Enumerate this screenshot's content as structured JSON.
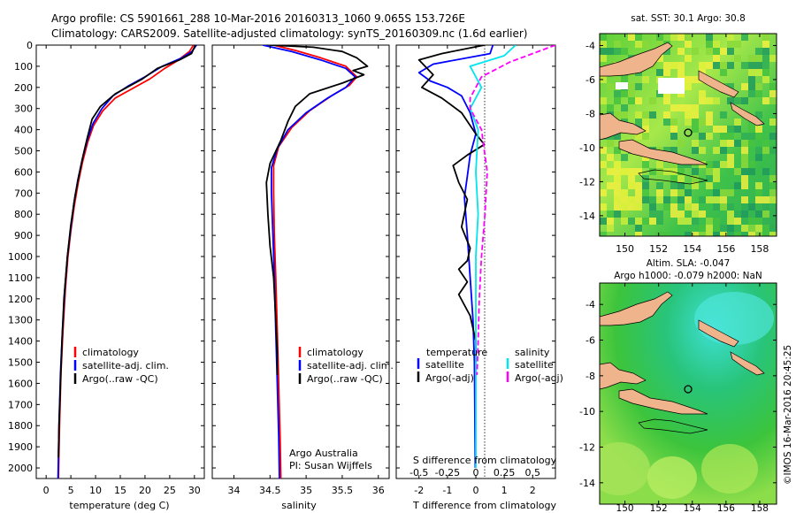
{
  "header": {
    "line1": "Argo profile: CS 5901661_288 10-Mar-2016 20160313_1060 9.065S 153.726E",
    "line2": "Climatology: CARS2009. Satellite-adjusted climatology: synTS_20160309.nc (1.6d earlier)"
  },
  "colors": {
    "clim": "#ff0000",
    "sat": "#0000ff",
    "argo": "#000000",
    "sat_s": "#00e5ee",
    "argo_s": "#ff00ff",
    "land": "#f0b48c"
  },
  "credits": {
    "org": "Argo Australia",
    "pi": "PI: Susan Wijffels",
    "imos": "©IMOS 16-Mar-2016 20:45:25"
  },
  "chart_data": [
    {
      "type": "line",
      "xlabel": "temperature (deg C)",
      "xlim": [
        -2,
        32
      ],
      "xticks": [
        0,
        5,
        10,
        15,
        20,
        25,
        30
      ],
      "ylim": [
        2050,
        0
      ],
      "yticks": [
        0,
        100,
        200,
        300,
        400,
        500,
        600,
        700,
        800,
        900,
        1000,
        1100,
        1200,
        1300,
        1400,
        1500,
        1600,
        1700,
        1800,
        1900,
        2000
      ],
      "legend": [
        "climatology",
        "satellite-adj. clim.",
        "Argo(..raw -QC)"
      ],
      "series": [
        {
          "name": "climatology",
          "color_key": "clim",
          "points": [
            [
              29.8,
              0
            ],
            [
              29,
              30
            ],
            [
              26.5,
              75
            ],
            [
              24,
              110
            ],
            [
              21,
              160
            ],
            [
              17.5,
              205
            ],
            [
              14,
              250
            ],
            [
              11.5,
              310
            ],
            [
              9.6,
              380
            ],
            [
              8.4,
              460
            ],
            [
              7.4,
              550
            ],
            [
              6.5,
              650
            ],
            [
              5.7,
              760
            ],
            [
              5,
              880
            ],
            [
              4.4,
              1000
            ],
            [
              3.9,
              1150
            ],
            [
              3.4,
              1350
            ],
            [
              3,
              1550
            ],
            [
              2.7,
              1800
            ],
            [
              2.5,
              2050
            ]
          ]
        },
        {
          "name": "satellite-adj. clim.",
          "color_key": "sat",
          "points": [
            [
              30.4,
              0
            ],
            [
              29.5,
              30
            ],
            [
              27.5,
              60
            ],
            [
              23.5,
              100
            ],
            [
              20,
              150
            ],
            [
              16.5,
              195
            ],
            [
              13.5,
              240
            ],
            [
              11.3,
              300
            ],
            [
              9.5,
              370
            ],
            [
              8.3,
              450
            ],
            [
              7.3,
              540
            ],
            [
              6.4,
              640
            ],
            [
              5.6,
              750
            ],
            [
              4.9,
              880
            ],
            [
              4.3,
              1000
            ],
            [
              3.8,
              1150
            ],
            [
              3.3,
              1350
            ],
            [
              2.9,
              1550
            ],
            [
              2.6,
              1800
            ],
            [
              2.4,
              2050
            ]
          ]
        },
        {
          "name": "Argo(..raw -QC)",
          "color_key": "argo",
          "points": [
            [
              30.2,
              0
            ],
            [
              29.4,
              40
            ],
            [
              27,
              70
            ],
            [
              22.5,
              110
            ],
            [
              19.5,
              160
            ],
            [
              14,
              230
            ],
            [
              11,
              290
            ],
            [
              9.3,
              350
            ],
            [
              8.3,
              440
            ],
            [
              7.5,
              520
            ],
            [
              6.6,
              620
            ],
            [
              5.8,
              720
            ],
            [
              5,
              850
            ],
            [
              4.3,
              1000
            ],
            [
              3.6,
              1200
            ],
            [
              3.2,
              1400
            ],
            [
              2.9,
              1600
            ],
            [
              2.6,
              1800
            ],
            [
              2.5,
              1950
            ]
          ]
        }
      ]
    },
    {
      "type": "line",
      "xlabel": "salinity",
      "xlim": [
        33.7,
        36.15
      ],
      "xticks": [
        34,
        34.5,
        35,
        35.5,
        36
      ],
      "ylim": [
        2050,
        0
      ],
      "legend": [
        "climatology",
        "satellite-adj. clim.",
        "Argo(..raw -QC)"
      ],
      "series": [
        {
          "name": "climatology",
          "color_key": "clim",
          "points": [
            [
              34.55,
              0
            ],
            [
              34.85,
              25
            ],
            [
              35.2,
              60
            ],
            [
              35.55,
              100
            ],
            [
              35.7,
              150
            ],
            [
              35.6,
              190
            ],
            [
              35.35,
              240
            ],
            [
              35.05,
              310
            ],
            [
              34.8,
              390
            ],
            [
              34.62,
              480
            ],
            [
              34.55,
              570
            ],
            [
              34.55,
              700
            ],
            [
              34.56,
              900
            ],
            [
              34.58,
              1100
            ],
            [
              34.6,
              1350
            ],
            [
              34.62,
              1600
            ],
            [
              34.64,
              1850
            ],
            [
              34.65,
              2050
            ]
          ]
        },
        {
          "name": "satellite-adj. clim.",
          "color_key": "sat",
          "points": [
            [
              34.4,
              0
            ],
            [
              34.8,
              30
            ],
            [
              35.2,
              70
            ],
            [
              35.55,
              110
            ],
            [
              35.68,
              150
            ],
            [
              35.55,
              200
            ],
            [
              35.3,
              250
            ],
            [
              35,
              320
            ],
            [
              34.75,
              400
            ],
            [
              34.6,
              490
            ],
            [
              34.52,
              580
            ],
            [
              34.52,
              700
            ],
            [
              34.54,
              900
            ],
            [
              34.56,
              1100
            ],
            [
              34.58,
              1350
            ],
            [
              34.6,
              1600
            ],
            [
              34.62,
              1850
            ],
            [
              34.63,
              2050
            ]
          ]
        },
        {
          "name": "Argo(..raw -QC)",
          "color_key": "argo",
          "points": [
            [
              34.5,
              0
            ],
            [
              35.1,
              10
            ],
            [
              35.5,
              30
            ],
            [
              35.7,
              60
            ],
            [
              35.85,
              100
            ],
            [
              35.65,
              120
            ],
            [
              35.8,
              140
            ],
            [
              35.5,
              180
            ],
            [
              35.05,
              230
            ],
            [
              34.85,
              290
            ],
            [
              34.75,
              360
            ],
            [
              34.65,
              450
            ],
            [
              34.5,
              560
            ],
            [
              34.45,
              650
            ],
            [
              34.47,
              800
            ],
            [
              34.5,
              950
            ],
            [
              34.55,
              1100
            ],
            [
              34.58,
              1300
            ],
            [
              34.6,
              1460
            ],
            [
              34.6,
              1560
            ]
          ]
        }
      ]
    },
    {
      "type": "line",
      "xlabel": "T difference from climatology",
      "sublabel": "S difference from climatology",
      "xlim": [
        -2.8,
        2.8
      ],
      "xticks": [
        -2,
        -1,
        0,
        1,
        2
      ],
      "xlim_s": [
        -0.7,
        0.7
      ],
      "xticks_s": [
        -0.5,
        -0.25,
        0,
        0.25,
        0.5
      ],
      "ylim": [
        2050,
        0
      ],
      "legend_groups": [
        {
          "title": "temperature",
          "items": [
            "satellite",
            "Argo(-adj)"
          ]
        },
        {
          "title": "salinity",
          "items": [
            "satellite",
            "Argo(-adj)"
          ]
        }
      ],
      "series": [
        {
          "name": "temperature satellite",
          "color_key": "sat",
          "points": [
            [
              0.6,
              0
            ],
            [
              0.5,
              40
            ],
            [
              -1.5,
              90
            ],
            [
              -2,
              130
            ],
            [
              -1.6,
              170
            ],
            [
              -1,
              200
            ],
            [
              -0.5,
              240
            ],
            [
              -0.2,
              320
            ],
            [
              0,
              420
            ],
            [
              -0.2,
              520
            ],
            [
              -0.3,
              620
            ],
            [
              -0.4,
              720
            ],
            [
              -0.3,
              900
            ],
            [
              -0.2,
              1100
            ],
            [
              -0.1,
              1300
            ],
            [
              -0.05,
              1500
            ],
            [
              -0.02,
              2000
            ]
          ]
        },
        {
          "name": "temperature Argo(-adj)",
          "color_key": "argo",
          "points": [
            [
              0.3,
              0
            ],
            [
              -1.2,
              40
            ],
            [
              -2,
              70
            ],
            [
              -1.5,
              140
            ],
            [
              -1.9,
              200
            ],
            [
              -1.2,
              250
            ],
            [
              -0.5,
              320
            ],
            [
              0,
              420
            ],
            [
              0.3,
              470
            ],
            [
              -0.3,
              520
            ],
            [
              -0.8,
              570
            ],
            [
              -0.6,
              650
            ],
            [
              -0.3,
              730
            ],
            [
              -0.5,
              860
            ],
            [
              -0.2,
              960
            ],
            [
              -0.3,
              1020
            ],
            [
              -0.6,
              1060
            ],
            [
              -0.3,
              1120
            ],
            [
              -0.6,
              1180
            ],
            [
              -0.2,
              1280
            ],
            [
              0,
              1400
            ],
            [
              0,
              1500
            ]
          ]
        },
        {
          "name": "salinity satellite",
          "color_key": "sat_s",
          "points": [
            [
              0.35,
              0
            ],
            [
              0.25,
              50
            ],
            [
              -0.05,
              100
            ],
            [
              0.05,
              200
            ],
            [
              -0.05,
              300
            ],
            [
              0.02,
              400
            ],
            [
              0,
              600
            ],
            [
              0.02,
              800
            ],
            [
              0,
              1000
            ],
            [
              0,
              1500
            ],
            [
              0,
              2000
            ]
          ]
        },
        {
          "name": "salinity Argo(-adj)",
          "color_key": "argo_s",
          "dashed": true,
          "points": [
            [
              0.7,
              0
            ],
            [
              0.3,
              80
            ],
            [
              0.05,
              150
            ],
            [
              -0.05,
              250
            ],
            [
              -0.05,
              300
            ],
            [
              0.05,
              400
            ],
            [
              0.1,
              600
            ],
            [
              0.08,
              800
            ],
            [
              0.05,
              1000
            ],
            [
              0.03,
              1200
            ],
            [
              0.02,
              1400
            ],
            [
              0.01,
              1560
            ]
          ]
        }
      ]
    },
    {
      "type": "heatmap",
      "title": "sat. SST: 30.1  Argo: 30.8",
      "xticks": [
        150,
        152,
        154,
        156,
        158
      ],
      "yticks": [
        -4,
        -6,
        -8,
        -10,
        -12,
        -14
      ]
    },
    {
      "type": "heatmap",
      "title_line1": "Altim. SLA: -0.047",
      "title_line2": "Argo h1000: -0.079  h2000: NaN",
      "xticks": [
        150,
        152,
        154,
        156,
        158
      ],
      "yticks": [
        -4,
        -6,
        -8,
        -10,
        -12,
        -14
      ]
    }
  ]
}
